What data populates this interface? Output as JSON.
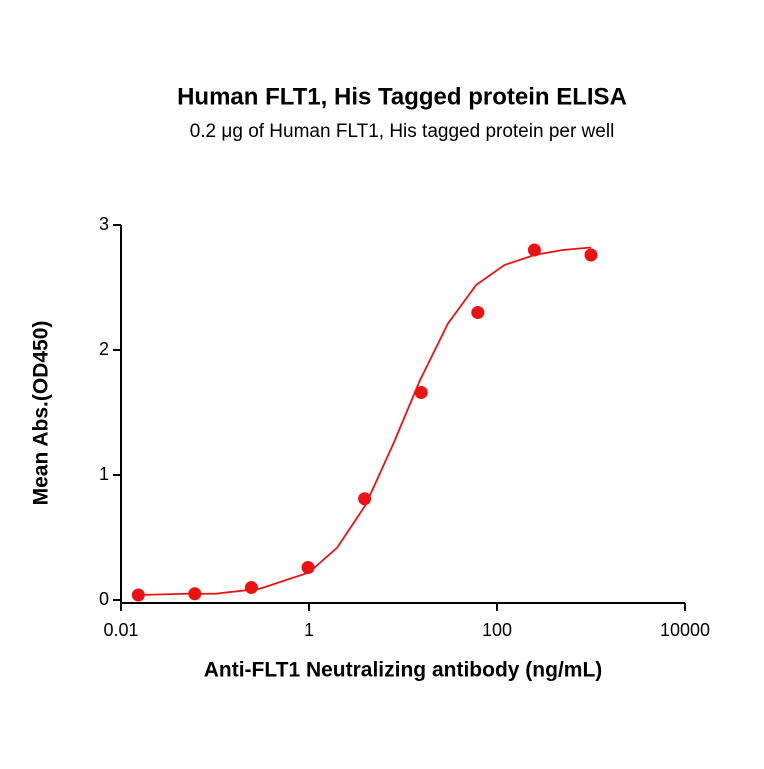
{
  "chart_data": {
    "type": "scatter",
    "title": "Human FLT1, His Tagged protein ELISA",
    "subtitle": "0.2 μg of Human FLT1, His tagged protein per well",
    "x_label": "Anti-FLT1 Neutralizing antibody (ng/mL)",
    "y_label": "Mean Abs.(OD450)",
    "x_scale": "log",
    "series": [
      {
        "type": "scatter",
        "color": "#ee1111",
        "x": [
          0.0153,
          0.061,
          0.244,
          0.977,
          3.906,
          15.625,
          62.5,
          250,
          1000
        ],
        "values": [
          0.04,
          0.05,
          0.1,
          0.26,
          0.81,
          1.66,
          2.3,
          2.8,
          2.76
        ]
      },
      {
        "type": "line",
        "color": "#ee1111",
        "x": [
          0.0153,
          0.05,
          0.1,
          0.3,
          1,
          2,
          4,
          8,
          15,
          30,
          60,
          120,
          250,
          500,
          1000
        ],
        "values": [
          0.04,
          0.05,
          0.05,
          0.09,
          0.22,
          0.42,
          0.76,
          1.26,
          1.75,
          2.21,
          2.52,
          2.68,
          2.76,
          2.8,
          2.82
        ]
      }
    ],
    "xlim": [
      0.01,
      10000
    ],
    "xticks": [
      0.01,
      1,
      100,
      10000
    ],
    "ylim": [
      0,
      3
    ],
    "yticks": [
      0,
      1,
      2,
      3
    ]
  }
}
